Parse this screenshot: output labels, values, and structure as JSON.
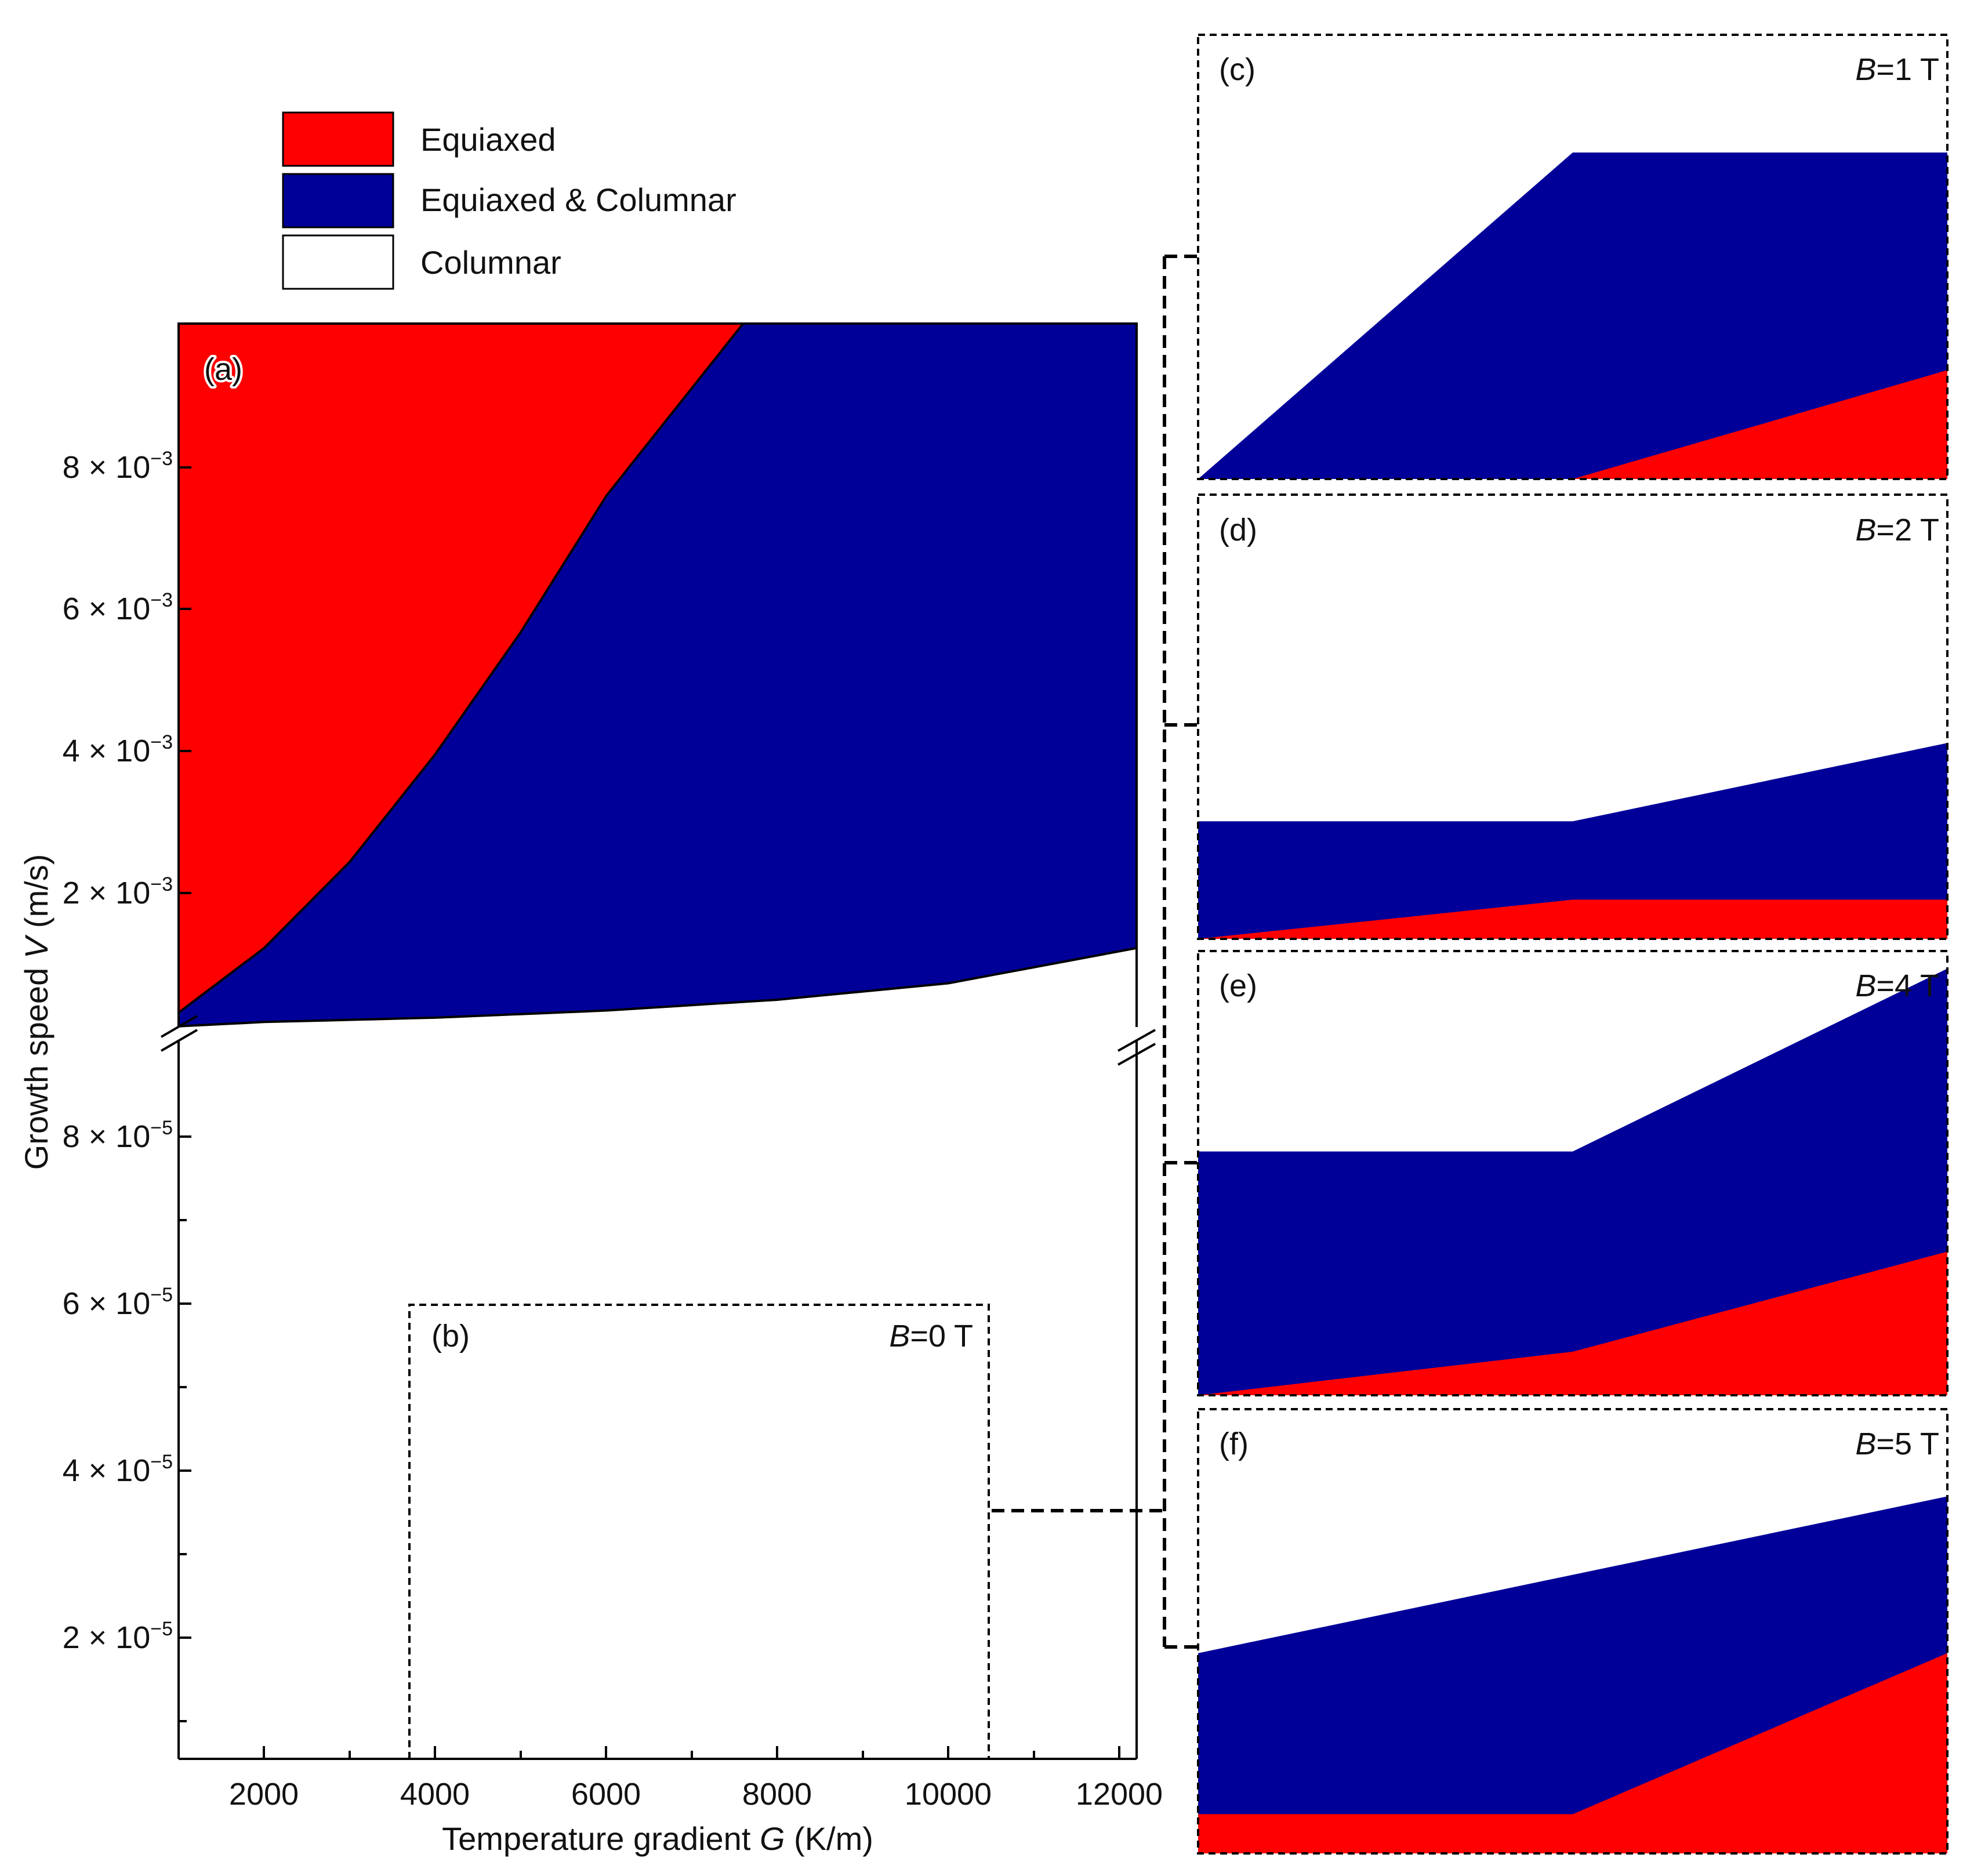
{
  "legend": {
    "items": [
      {
        "label": "Equiaxed",
        "color": "#ff0000"
      },
      {
        "label": "Equiaxed & Columnar",
        "color": "#000099"
      },
      {
        "label": "Columnar",
        "color": "#ffffff"
      }
    ]
  },
  "colors": {
    "equiaxed": "#ff0000",
    "mixed": "#000099",
    "columnar": "#ffffff",
    "axis": "#000000"
  },
  "chart_data": [
    {
      "id": "a",
      "type": "area",
      "panel_label": "(a)",
      "xlabel_prefix": "Temperature gradient ",
      "xlabel_var": "G",
      "xlabel_suffix": " (K/m)",
      "ylabel_prefix": "Growth speed ",
      "ylabel_var": "V",
      "ylabel_suffix": " (m/s)",
      "xlim": [
        1000,
        12200
      ],
      "x_ticks": [
        2000,
        4000,
        6000,
        8000,
        10000,
        12000
      ],
      "x_tick_labels": [
        "2000",
        "4000",
        "6000",
        "8000",
        "10000",
        "12000"
      ],
      "y_break": true,
      "y_upper": {
        "ylim": [
          0.0002,
          0.01
        ],
        "ticks": [
          0.002,
          0.004,
          0.006,
          0.008
        ],
        "tick_mantissa": [
          "2 × 10",
          "4 × 10",
          "6 × 10",
          "8 × 10"
        ],
        "tick_exponent": "−3"
      },
      "y_lower": {
        "ylim": [
          5e-06,
          9e-05
        ],
        "ticks": [
          2e-05,
          4e-05,
          6e-05,
          8e-05
        ],
        "tick_mantissa": [
          "2 × 10",
          "4 × 10",
          "6 × 10",
          "8 × 10"
        ],
        "tick_exponent": "−5"
      },
      "series": [
        {
          "name": "Equiaxed / Equiaxed & Columnar boundary",
          "x": [
            1000,
            2000,
            3000,
            4000,
            5000,
            6000,
            7000,
            7600
          ],
          "y": [
            0.0004,
            0.0013,
            0.0025,
            0.004,
            0.0057,
            0.0076,
            0.0091,
            0.01
          ]
        },
        {
          "name": "Equiaxed & Columnar / Columnar boundary",
          "x": [
            1000,
            2000,
            4000,
            6000,
            8000,
            10000,
            12200
          ],
          "y": [
            0.00021,
            0.00027,
            0.00033,
            0.00043,
            0.00058,
            0.00081,
            0.0013
          ]
        }
      ],
      "inset": {
        "panel_label": "(b)",
        "b_var": "B",
        "b_value": "=0 T",
        "x_range": [
          3700,
          10450
        ],
        "y_top": 6e-05
      }
    },
    {
      "id": "c",
      "type": "area",
      "panel_label": "(c)",
      "b_var": "B",
      "b_value": "=1 T",
      "x": [
        0,
        0.5,
        1
      ],
      "upper": [
        0.0,
        0.75,
        0.75
      ],
      "lower": [
        0.0,
        0.0,
        0.25
      ]
    },
    {
      "id": "d",
      "type": "area",
      "panel_label": "(d)",
      "b_var": "B",
      "b_value": "=2 T",
      "x": [
        0,
        0.5,
        1
      ],
      "upper": [
        0.27,
        0.27,
        0.45
      ],
      "lower": [
        0.0,
        0.09,
        0.09
      ]
    },
    {
      "id": "e",
      "type": "area",
      "panel_label": "(e)",
      "b_var": "B",
      "b_value": "=4 T",
      "x": [
        0,
        0.5,
        1
      ],
      "upper": [
        0.56,
        0.56,
        0.98
      ],
      "lower": [
        0.0,
        0.1,
        0.33
      ]
    },
    {
      "id": "f",
      "type": "area",
      "panel_label": "(f)",
      "b_var": "B",
      "b_value": "=5 T",
      "x": [
        0,
        0.5,
        1
      ],
      "upper": [
        0.46,
        0.64,
        0.82
      ],
      "lower": [
        0.09,
        0.09,
        0.46
      ]
    }
  ]
}
